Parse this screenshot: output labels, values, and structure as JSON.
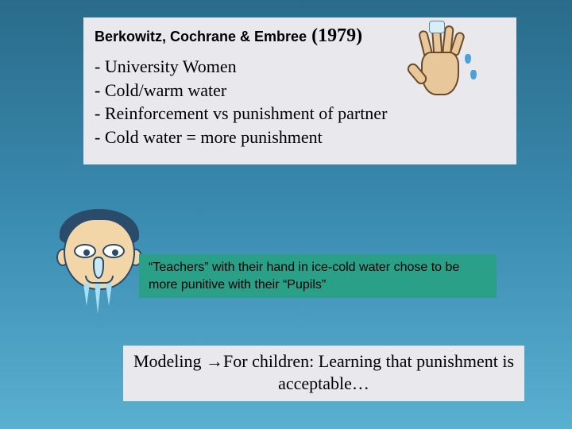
{
  "top": {
    "authors": "Berkowitz, Cochrane & Embree",
    "year": "(1979)",
    "bullets": [
      "- University Women",
      "- Cold/warm water",
      "- Reinforcement vs punishment of partner",
      "- Cold water = more punishment"
    ]
  },
  "mid": {
    "text": "“Teachers” with their hand in  ice-cold water chose to be more punitive with their “Pupils”"
  },
  "bottom": {
    "text": "Modeling →For children: Learning that punishment is acceptable…"
  },
  "colors": {
    "bg_top": "#2a6b8a",
    "bg_bottom": "#5ab0d0",
    "box_light": "#e8e8ed",
    "box_teal": "#2aa089"
  },
  "fonts": {
    "authors_size": 18,
    "year_size": 24,
    "bullet_size": 22,
    "mid_size": 16,
    "bottom_size": 22
  }
}
